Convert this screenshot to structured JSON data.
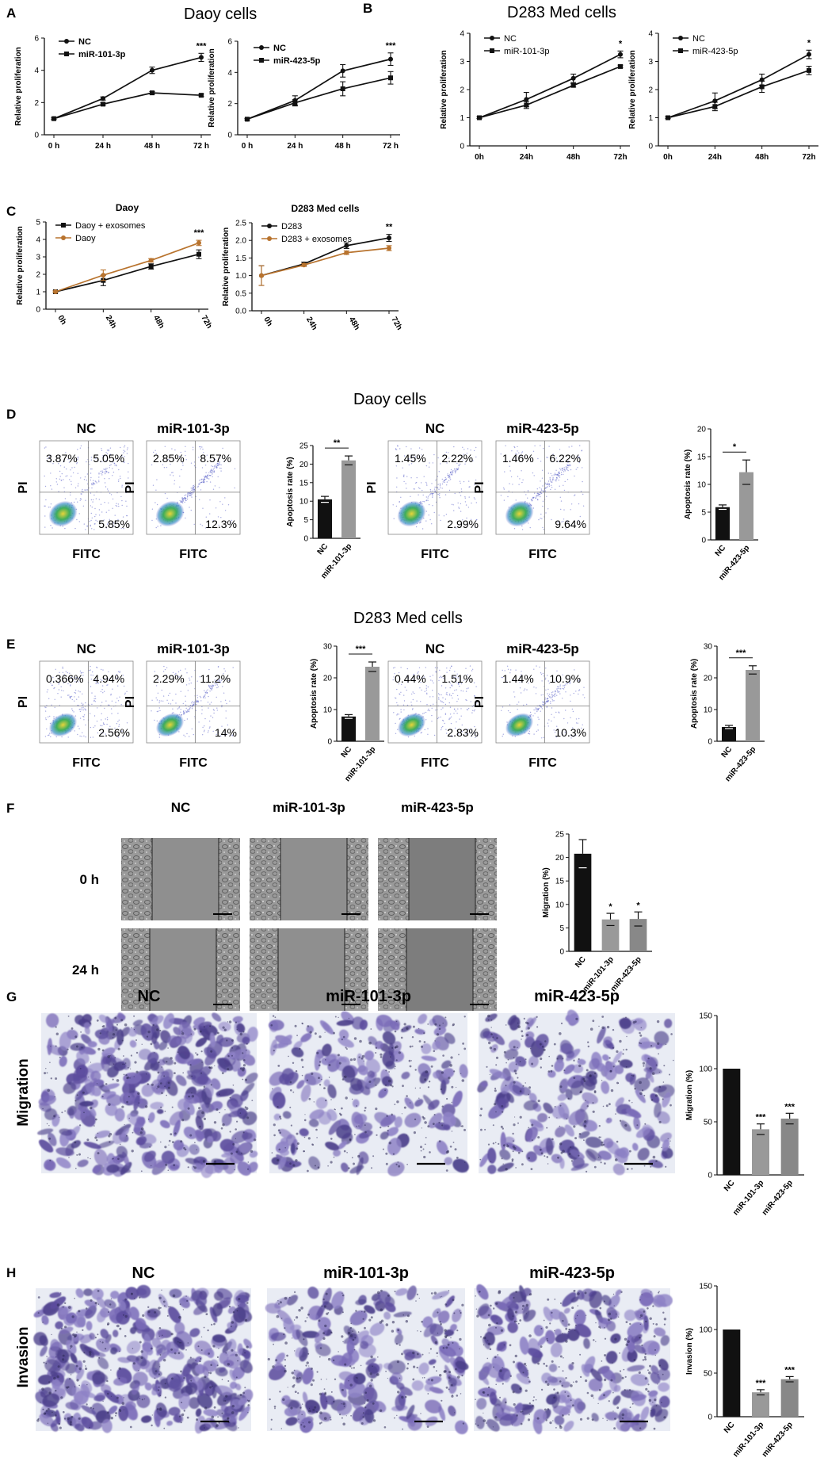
{
  "panels": {
    "A": {
      "label": "A",
      "title": "Daoy cells",
      "charts": [
        {
          "type": "line",
          "ylabel": "Relative proliferation",
          "categories": [
            "0 h",
            "24 h",
            "48 h",
            "72 h"
          ],
          "ylim": [
            0,
            6
          ],
          "yticks": [
            "0",
            "2",
            "4",
            "6"
          ],
          "series": [
            {
              "name": "NC",
              "values": [
                1.0,
                2.25,
                4.0,
                4.8
              ],
              "err": [
                0.05,
                0.1,
                0.2,
                0.25
              ],
              "color": "#111111",
              "marker": "circle"
            },
            {
              "name": "miR-101-3p",
              "values": [
                1.0,
                1.9,
                2.6,
                2.45
              ],
              "err": [
                0.05,
                0.08,
                0.08,
                0.08
              ],
              "color": "#111111",
              "marker": "square"
            }
          ],
          "annotation": "***"
        },
        {
          "type": "line",
          "ylabel": "Relative proliferation",
          "categories": [
            "0 h",
            "24 h",
            "48 h",
            "72 h"
          ],
          "ylim": [
            0,
            6
          ],
          "yticks": [
            "0",
            "2",
            "4",
            "6"
          ],
          "series": [
            {
              "name": "NC",
              "values": [
                1.0,
                2.2,
                4.1,
                4.85
              ],
              "err": [
                0.05,
                0.3,
                0.4,
                0.4
              ],
              "color": "#111111",
              "marker": "circle"
            },
            {
              "name": "miR-423-5p",
              "values": [
                1.0,
                2.05,
                2.95,
                3.65
              ],
              "err": [
                0.05,
                0.2,
                0.45,
                0.4
              ],
              "color": "#111111",
              "marker": "square"
            }
          ],
          "annotation": "***"
        }
      ]
    },
    "B": {
      "label": "B",
      "title": "D283 Med cells",
      "charts": [
        {
          "type": "line",
          "ylabel": "Relative proliferation",
          "categories": [
            "0h",
            "24h",
            "48h",
            "72h"
          ],
          "ylim": [
            0,
            4
          ],
          "yticks": [
            "0",
            "1",
            "2",
            "3",
            "4"
          ],
          "series": [
            {
              "name": "NC",
              "values": [
                1.0,
                1.65,
                2.4,
                3.25
              ],
              "err": [
                0.03,
                0.25,
                0.15,
                0.12
              ],
              "color": "#111111",
              "marker": "circle"
            },
            {
              "name": "miR-101-3p",
              "values": [
                1.0,
                1.45,
                2.15,
                2.82
              ],
              "err": [
                0.03,
                0.12,
                0.06,
                0.05
              ],
              "color": "#111111",
              "marker": "square"
            }
          ],
          "annotation": "*"
        },
        {
          "type": "line",
          "ylabel": "Relative proliferation",
          "categories": [
            "0h",
            "24h",
            "48h",
            "72h"
          ],
          "ylim": [
            0,
            4
          ],
          "yticks": [
            "0",
            "1",
            "2",
            "3",
            "4"
          ],
          "series": [
            {
              "name": "NC",
              "values": [
                1.0,
                1.6,
                2.35,
                3.25
              ],
              "err": [
                0.03,
                0.28,
                0.2,
                0.15
              ],
              "color": "#111111",
              "marker": "circle"
            },
            {
              "name": "miR-423-5p",
              "values": [
                1.0,
                1.4,
                2.1,
                2.68
              ],
              "err": [
                0.03,
                0.15,
                0.2,
                0.15
              ],
              "color": "#111111",
              "marker": "square"
            }
          ],
          "annotation": "*"
        }
      ]
    },
    "C": {
      "label": "C",
      "charts": [
        {
          "title": "Daoy",
          "type": "line",
          "ylabel": "Relative proliferation",
          "categories": [
            "0h",
            "24h",
            "48h",
            "72h"
          ],
          "ylim": [
            0,
            5
          ],
          "yticks": [
            "0",
            "1",
            "2",
            "3",
            "4",
            "5"
          ],
          "series": [
            {
              "name": "Daoy + exosomes",
              "values": [
                1.0,
                1.65,
                2.45,
                3.15
              ],
              "err": [
                0.05,
                0.3,
                0.15,
                0.25
              ],
              "color": "#111111",
              "marker": "square"
            },
            {
              "name": "Daoy",
              "values": [
                1.0,
                1.95,
                2.8,
                3.8
              ],
              "err": [
                0.05,
                0.3,
                0.1,
                0.15
              ],
              "color": "#b8732e",
              "marker": "circle"
            }
          ],
          "annotation": "***"
        },
        {
          "title": "D283 Med cells",
          "type": "line",
          "ylabel": "Relative proliferation",
          "categories": [
            "0h",
            "24h",
            "48h",
            "72h"
          ],
          "ylim": [
            0,
            2.5
          ],
          "yticks": [
            "0.0",
            "0.5",
            "1.0",
            "1.5",
            "2.0",
            "2.5"
          ],
          "series": [
            {
              "name": "D283",
              "values": [
                1.0,
                1.33,
                1.85,
                2.07
              ],
              "err": [
                0.28,
                0.05,
                0.08,
                0.1
              ],
              "color": "#111111",
              "marker": "circle"
            },
            {
              "name": "D283 + exosomes",
              "values": [
                1.0,
                1.3,
                1.65,
                1.78
              ],
              "err": [
                0.28,
                0.04,
                0.05,
                0.07
              ],
              "color": "#b8732e",
              "marker": "circle"
            }
          ],
          "annotation": "**"
        }
      ]
    },
    "D": {
      "label": "D",
      "title": "Daoy cells",
      "flow": [
        {
          "title": "NC",
          "q1": "3.87%",
          "q2": "5.05%",
          "q3": "5.85%",
          "xlabel": "FITC",
          "ylabel": "PI"
        },
        {
          "title": "miR-101-3p",
          "q1": "2.85%",
          "q2": "8.57%",
          "q3": "12.3%",
          "xlabel": "FITC",
          "ylabel": "PI"
        },
        {
          "title": "NC",
          "q1": "1.45%",
          "q2": "2.22%",
          "q3": "2.99%",
          "xlabel": "FITC",
          "ylabel": "PI"
        },
        {
          "title": "miR-423-5p",
          "q1": "1.46%",
          "q2": "6.22%",
          "q3": "9.64%",
          "xlabel": "FITC",
          "ylabel": "PI"
        }
      ],
      "bars": [
        {
          "type": "bar",
          "ylabel": "Apoptosis rate (%)",
          "categories": [
            "NC",
            "miR-101-3p"
          ],
          "values": [
            10.5,
            21.0
          ],
          "err": [
            0.8,
            1.2
          ],
          "ylim": [
            0,
            25
          ],
          "yticks": [
            "0",
            "5",
            "10",
            "15",
            "20",
            "25"
          ],
          "colors": [
            "#111111",
            "#999999"
          ],
          "annotation": "**"
        },
        {
          "type": "bar",
          "ylabel": "Apoptosis rate (%)",
          "categories": [
            "NC",
            "miR-423-5p"
          ],
          "values": [
            5.9,
            12.2
          ],
          "err": [
            0.4,
            2.2
          ],
          "ylim": [
            0,
            20
          ],
          "yticks": [
            "0",
            "5",
            "10",
            "15",
            "20"
          ],
          "colors": [
            "#111111",
            "#999999"
          ],
          "annotation": "*"
        }
      ]
    },
    "E": {
      "label": "E",
      "title": "D283 Med cells",
      "flow": [
        {
          "title": "NC",
          "q1": "0.366%",
          "q2": "4.94%",
          "q3": "2.56%",
          "xlabel": "FITC",
          "ylabel": "PI"
        },
        {
          "title": "miR-101-3p",
          "q1": "2.29%",
          "q2": "11.2%",
          "q3": "14%",
          "xlabel": "FITC",
          "ylabel": "PI"
        },
        {
          "title": "NC",
          "q1": "0.44%",
          "q2": "1.51%",
          "q3": "2.83%",
          "xlabel": "FITC",
          "ylabel": "PI"
        },
        {
          "title": "miR-423-5p",
          "q1": "1.44%",
          "q2": "10.9%",
          "q3": "10.3%",
          "xlabel": "FITC",
          "ylabel": "PI"
        }
      ],
      "bars": [
        {
          "type": "bar",
          "ylabel": "Apoptosis rate (%)",
          "categories": [
            "NC",
            "miR-101-3p"
          ],
          "values": [
            7.8,
            23.5
          ],
          "err": [
            0.6,
            1.5
          ],
          "ylim": [
            0,
            30
          ],
          "yticks": [
            "0",
            "10",
            "20",
            "30"
          ],
          "colors": [
            "#111111",
            "#999999"
          ],
          "annotation": "***"
        },
        {
          "type": "bar",
          "ylabel": "Apoptosis rate (%)",
          "categories": [
            "NC",
            "miR-423-5p"
          ],
          "values": [
            4.5,
            22.5
          ],
          "err": [
            0.5,
            1.3
          ],
          "ylim": [
            0,
            30
          ],
          "yticks": [
            "0",
            "10",
            "20",
            "30"
          ],
          "colors": [
            "#111111",
            "#999999"
          ],
          "annotation": "***"
        }
      ]
    },
    "F": {
      "label": "F",
      "columns": [
        "NC",
        "miR-101-3p",
        "miR-423-5p"
      ],
      "rows": [
        "0 h",
        "24 h"
      ],
      "bar": {
        "type": "bar",
        "ylabel": "Migration (%)",
        "categories": [
          "NC",
          "miR-101-3p",
          "miR-423-5p"
        ],
        "values": [
          20.8,
          6.8,
          6.9
        ],
        "err": [
          3.0,
          1.3,
          1.5
        ],
        "ylim": [
          0,
          25
        ],
        "yticks": [
          "0",
          "5",
          "10",
          "15",
          "20",
          "25"
        ],
        "colors": [
          "#111111",
          "#999999",
          "#888888"
        ],
        "annotations": [
          "",
          "*",
          "*"
        ]
      }
    },
    "G": {
      "label": "G",
      "columns": [
        "NC",
        "miR-101-3p",
        "miR-423-5p"
      ],
      "row": "Migration",
      "bar": {
        "type": "bar",
        "ylabel": "Migration (%)",
        "categories": [
          "NC",
          "miR-101-3p",
          "miR-423-5p"
        ],
        "values": [
          100,
          43,
          53
        ],
        "err": [
          0,
          5,
          5
        ],
        "ylim": [
          0,
          150
        ],
        "yticks": [
          "0",
          "50",
          "100",
          "150"
        ],
        "colors": [
          "#111111",
          "#999999",
          "#888888"
        ],
        "annotations": [
          "",
          "***",
          "***"
        ]
      }
    },
    "H": {
      "label": "H",
      "columns": [
        "NC",
        "miR-101-3p",
        "miR-423-5p"
      ],
      "row": "Invasion",
      "bar": {
        "type": "bar",
        "ylabel": "Invasion (%)",
        "categories": [
          "NC",
          "miR-101-3p",
          "miR-423-5p"
        ],
        "values": [
          100,
          28,
          43
        ],
        "err": [
          0,
          3,
          3
        ],
        "ylim": [
          0,
          150
        ],
        "yticks": [
          "0",
          "50",
          "100",
          "150"
        ],
        "colors": [
          "#111111",
          "#999999",
          "#888888"
        ],
        "annotations": [
          "",
          "***",
          "***"
        ]
      }
    }
  },
  "colors": {
    "flow_bg": "#ffffff",
    "flow_scatter": "#5b62c9",
    "flow_core_green": "#3aa35a",
    "flow_core_yellow": "#e2d235",
    "micro_bg": "#e9ecf4",
    "micro_cell": "#6a5aa8",
    "scratch_gray": "#a0a0a0"
  }
}
